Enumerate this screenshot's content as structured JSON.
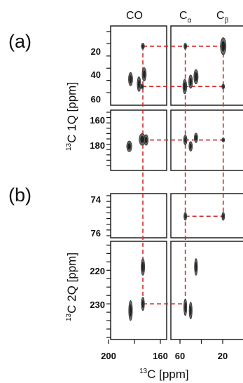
{
  "chart_data": {
    "type": "contour",
    "xlabel": {
      "prefix": "13",
      "text": "C [ppm]"
    },
    "x_ticks": [
      "200",
      "160",
      "60",
      "20"
    ],
    "panel_labels": [
      "(a)",
      "(b)"
    ],
    "column_headers": [
      {
        "main": "CO",
        "sub": ""
      },
      {
        "main": "C",
        "sub": "α"
      },
      {
        "main": "C",
        "sub": "β"
      }
    ],
    "ylabels": [
      {
        "prefix": "13",
        "text": "C 1Q [ppm]"
      },
      {
        "prefix": "13",
        "text": "C 2Q [ppm]"
      }
    ],
    "y_ticks": {
      "a_aliphatic": [
        "20",
        "40",
        "60"
      ],
      "a_carbonyl": [
        "160",
        "180"
      ],
      "b_upper": [
        "74",
        "76"
      ],
      "b_lower": [
        "220",
        "230"
      ]
    },
    "line_color": "#d42a2a",
    "peak_color": "#333333",
    "panels": [
      {
        "id": "a_aliphatic",
        "ylim": [
          10,
          68
        ],
        "peaks": [
          {
            "col": "CO",
            "x": 173.5,
            "y": 22,
            "rx": 1.2,
            "ry": 2.5
          },
          {
            "col": "CO",
            "x": 183.0,
            "y": 49,
            "rx": 1.6,
            "ry": 5.5
          },
          {
            "col": "CO",
            "x": 176.5,
            "y": 53,
            "rx": 1.4,
            "ry": 6.0
          },
          {
            "col": "CO",
            "x": 172.5,
            "y": 45,
            "rx": 1.6,
            "ry": 5.5
          },
          {
            "col": "CO",
            "x": 174.0,
            "y": 55,
            "rx": 1.0,
            "ry": 2.0
          },
          {
            "col": "CC",
            "x": 55.0,
            "y": 22,
            "rx": 1.2,
            "ry": 2.5
          },
          {
            "col": "CC",
            "x": 55.5,
            "y": 55,
            "rx": 1.8,
            "ry": 6.0
          },
          {
            "col": "CC",
            "x": 50.0,
            "y": 51,
            "rx": 1.8,
            "ry": 5.5
          },
          {
            "col": "CC",
            "x": 45.0,
            "y": 47,
            "rx": 2.0,
            "ry": 6.0
          },
          {
            "col": "CC",
            "x": 19.5,
            "y": 22,
            "rx": 2.6,
            "ry": 7.0
          },
          {
            "col": "CC",
            "x": 19.5,
            "y": 55,
            "rx": 1.0,
            "ry": 2.0
          }
        ]
      },
      {
        "id": "a_carbonyl",
        "ylim": [
          150,
          200
        ],
        "peaks": [
          {
            "col": "CO",
            "x": 184.0,
            "y": 182,
            "rx": 2.0,
            "ry": 5.0
          },
          {
            "col": "CO",
            "x": 174.0,
            "y": 175.5,
            "rx": 2.4,
            "ry": 5.5
          },
          {
            "col": "CO",
            "x": 171.0,
            "y": 176,
            "rx": 1.6,
            "ry": 5.0
          },
          {
            "col": "CC",
            "x": 55.0,
            "y": 176,
            "rx": 1.6,
            "ry": 4.5
          },
          {
            "col": "CC",
            "x": 50.0,
            "y": 182,
            "rx": 1.6,
            "ry": 4.5
          },
          {
            "col": "CC",
            "x": 45.0,
            "y": 174,
            "rx": 1.6,
            "ry": 4.5
          },
          {
            "col": "CC",
            "x": 19.5,
            "y": 176,
            "rx": 1.0,
            "ry": 2.0
          }
        ]
      },
      {
        "id": "b_upper",
        "ylim": [
          73,
          76.5
        ],
        "peaks": [
          {
            "col": "CC",
            "x": 55.0,
            "y": 74.8,
            "rx": 1.0,
            "ry": 0.35
          },
          {
            "col": "CC",
            "x": 19.5,
            "y": 74.8,
            "rx": 1.0,
            "ry": 0.35
          }
        ]
      },
      {
        "id": "b_lower",
        "ylim": [
          212,
          240
        ],
        "peaks": [
          {
            "col": "CO",
            "x": 173.5,
            "y": 219,
            "rx": 1.4,
            "ry": 2.5
          },
          {
            "col": "CO",
            "x": 173.5,
            "y": 230,
            "rx": 1.2,
            "ry": 2.0
          },
          {
            "col": "CO",
            "x": 183.0,
            "y": 232,
            "rx": 1.4,
            "ry": 3.0
          },
          {
            "col": "CC",
            "x": 45.0,
            "y": 219,
            "rx": 1.4,
            "ry": 2.5
          },
          {
            "col": "CC",
            "x": 55.0,
            "y": 231,
            "rx": 1.4,
            "ry": 2.5
          },
          {
            "col": "CC",
            "x": 50.0,
            "y": 232,
            "rx": 1.4,
            "ry": 2.5
          }
        ]
      }
    ],
    "connectors": [
      {
        "kind": "h",
        "panel": "a_aliphatic",
        "y": 22,
        "x_from": {
          "col": "CO",
          "x": 173.5
        },
        "x_to": {
          "col": "CC",
          "x": 19.5
        }
      },
      {
        "kind": "h",
        "panel": "a_aliphatic",
        "y": 55,
        "x_from": {
          "col": "CO",
          "x": 174.0
        },
        "x_to": {
          "col": "CC",
          "x": 19.5
        }
      },
      {
        "kind": "h",
        "panel": "a_carbonyl",
        "y": 176,
        "x_from": {
          "col": "CO",
          "x": 173.5
        },
        "x_to": {
          "col": "CC",
          "x": 19.5
        }
      },
      {
        "kind": "h",
        "panel": "b_upper",
        "y": 74.8,
        "x_from": {
          "col": "CC",
          "x": 55.0
        },
        "x_to": {
          "col": "CC",
          "x": 19.5
        }
      },
      {
        "kind": "h",
        "panel": "b_lower",
        "y": 230,
        "x_from": {
          "col": "CO",
          "x": 173.5
        },
        "x_to": {
          "col": "CC",
          "x": 55.0
        }
      },
      {
        "kind": "v",
        "col": "CO",
        "x": 173.5,
        "y_from": {
          "panel": "a_aliphatic",
          "y": 22
        },
        "y_to": {
          "panel": "b_lower",
          "y": 230
        }
      },
      {
        "kind": "v",
        "col": "CC",
        "x": 55.0,
        "y_from": {
          "panel": "a_aliphatic",
          "y": 22
        },
        "y_to": {
          "panel": "b_lower",
          "y": 231
        }
      },
      {
        "kind": "v",
        "col": "CC",
        "x": 19.5,
        "y_from": {
          "panel": "a_aliphatic",
          "y": 22
        },
        "y_to": {
          "panel": "b_upper",
          "y": 74.8
        }
      }
    ]
  }
}
